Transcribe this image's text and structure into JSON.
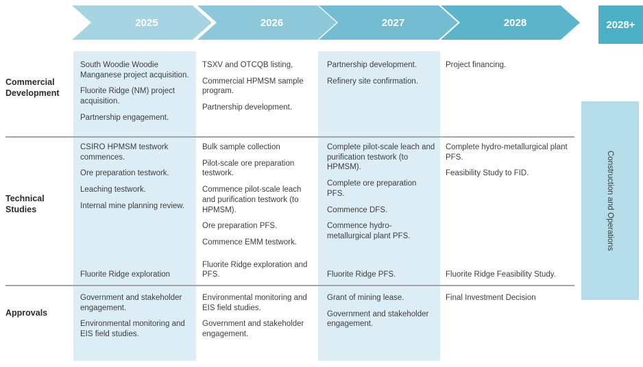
{
  "header": {
    "years": [
      {
        "label": "2025"
      },
      {
        "label": "2026"
      },
      {
        "label": "2027"
      },
      {
        "label": "2028"
      }
    ],
    "final": {
      "label": "2028+"
    }
  },
  "rows": [
    {
      "label": "Commercial Development",
      "cells": [
        {
          "items": [
            "South Woodie Woodie Manganese project acquisition.",
            "Fluorite Ridge (NM) project acquisition.",
            "Partnership engagement."
          ]
        },
        {
          "items": [
            "TSXV and OTCQB listing,",
            "Commercial HPMSM sample program.",
            "Partnership development."
          ]
        },
        {
          "items": [
            "Partnership development.",
            "Refinery site confirmation."
          ]
        },
        {
          "items": [
            "Project financing."
          ]
        }
      ]
    },
    {
      "label": "Technical Studies",
      "cells": [
        {
          "items": [
            "CSIRO HPMSM testwork commences.",
            "Ore preparation testwork.",
            "Leaching testwork.",
            "Internal mine planning review."
          ],
          "bottom": "Fluorite Ridge exploration"
        },
        {
          "items": [
            "Bulk sample collection",
            "Pilot-scale ore preparation testwork.",
            "Commence pilot-scale leach and purification testwork (to HPMSM).",
            "Ore preparation PFS.",
            "Commence EMM testwork."
          ],
          "bottom": "Fluorite Ridge exploration and PFS."
        },
        {
          "items": [
            "Complete pilot-scale leach and purification testwork (to HPMSM).",
            "Complete ore preparation PFS.",
            "Commence DFS.",
            "Commence hydro-metallurgical plant PFS."
          ],
          "bottom": "Fluorite Ridge PFS."
        },
        {
          "items": [
            "Complete hydro-metallurgical plant PFS.",
            "Feasibility Study to FID."
          ],
          "bottom": "Fluorite Ridge Feasibility Study."
        }
      ]
    },
    {
      "label": "Approvals",
      "cells": [
        {
          "items": [
            "Government and stakeholder engagement.",
            "Environmental monitoring and EIS field studies."
          ]
        },
        {
          "items": [
            "Environmental monitoring and EIS field studies.",
            "Government and stakeholder engagement."
          ]
        },
        {
          "items": [
            "Grant of mining lease.",
            "Government and stakeholder engagement."
          ]
        },
        {
          "items": [
            "Final Investment Decision"
          ]
        }
      ]
    }
  ],
  "construction_bar": {
    "label": "Construction and Operations"
  },
  "colors": {
    "chev_2025": "#a6d4e2",
    "chev_2026": "#8cc8d9",
    "chev_2027": "#73bcd1",
    "chev_2028": "#5cb4ca",
    "chev_final": "#4bafc6",
    "column_highlight": "#ddedf5",
    "construction_bar": "#b5dde9",
    "divider": "#a0a6a9",
    "text": "#3d3d3d",
    "header_text": "#ffffff"
  }
}
